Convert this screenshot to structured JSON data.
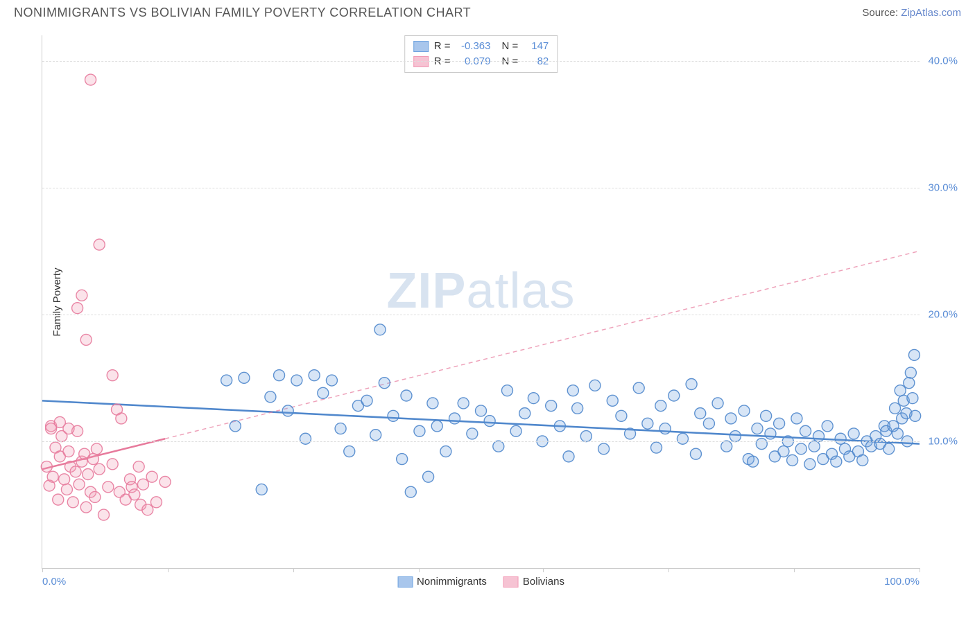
{
  "header": {
    "title": "NONIMMIGRANTS VS BOLIVIAN FAMILY POVERTY CORRELATION CHART",
    "source_label": "Source:",
    "source_name": "ZipAtlas.com"
  },
  "watermark": {
    "part1": "ZIP",
    "part2": "atlas"
  },
  "chart": {
    "type": "scatter",
    "ylabel": "Family Poverty",
    "xlim": [
      0,
      100
    ],
    "ylim": [
      0,
      42
    ],
    "ytick_values": [
      10,
      20,
      30,
      40
    ],
    "ytick_labels": [
      "10.0%",
      "20.0%",
      "30.0%",
      "40.0%"
    ],
    "xtick_positions": [
      0,
      14.3,
      28.6,
      42.9,
      57.1,
      71.4,
      85.7,
      100
    ],
    "x_left_label": "0.0%",
    "x_right_label": "100.0%",
    "background_color": "#ffffff",
    "grid_color": "#dddddd",
    "axis_color": "#cccccc",
    "marker_radius": 8,
    "marker_fill_opacity": 0.28,
    "marker_stroke_opacity": 0.9,
    "series": [
      {
        "name": "Nonimmigrants",
        "color": "#6fa3e0",
        "stroke": "#4f87cc",
        "R": "-0.363",
        "N": "147",
        "trend": {
          "solid": {
            "x1": 0,
            "y1": 13.2,
            "x2": 100,
            "y2": 9.8
          },
          "dashed": null
        },
        "points": [
          [
            21,
            14.8
          ],
          [
            22,
            11.2
          ],
          [
            23,
            15.0
          ],
          [
            25,
            6.2
          ],
          [
            26,
            13.5
          ],
          [
            27,
            15.2
          ],
          [
            28,
            12.4
          ],
          [
            29,
            14.8
          ],
          [
            30,
            10.2
          ],
          [
            31,
            15.2
          ],
          [
            32,
            13.8
          ],
          [
            33,
            14.8
          ],
          [
            34,
            11.0
          ],
          [
            35,
            9.2
          ],
          [
            36,
            12.8
          ],
          [
            37,
            13.2
          ],
          [
            38,
            10.5
          ],
          [
            38.5,
            18.8
          ],
          [
            39,
            14.6
          ],
          [
            40,
            12.0
          ],
          [
            41,
            8.6
          ],
          [
            41.5,
            13.6
          ],
          [
            42,
            6.0
          ],
          [
            43,
            10.8
          ],
          [
            44,
            7.2
          ],
          [
            44.5,
            13.0
          ],
          [
            45,
            11.2
          ],
          [
            46,
            9.2
          ],
          [
            47,
            11.8
          ],
          [
            48,
            13.0
          ],
          [
            49,
            10.6
          ],
          [
            50,
            12.4
          ],
          [
            51,
            11.6
          ],
          [
            52,
            9.6
          ],
          [
            53,
            14.0
          ],
          [
            54,
            10.8
          ],
          [
            55,
            12.2
          ],
          [
            56,
            13.4
          ],
          [
            57,
            10.0
          ],
          [
            58,
            12.8
          ],
          [
            59,
            11.2
          ],
          [
            60,
            8.8
          ],
          [
            60.5,
            14.0
          ],
          [
            61,
            12.6
          ],
          [
            62,
            10.4
          ],
          [
            63,
            14.4
          ],
          [
            64,
            9.4
          ],
          [
            65,
            13.2
          ],
          [
            66,
            12.0
          ],
          [
            67,
            10.6
          ],
          [
            68,
            14.2
          ],
          [
            69,
            11.4
          ],
          [
            70,
            9.5
          ],
          [
            70.5,
            12.8
          ],
          [
            71,
            11.0
          ],
          [
            72,
            13.6
          ],
          [
            73,
            10.2
          ],
          [
            74,
            14.5
          ],
          [
            74.5,
            9.0
          ],
          [
            75,
            12.2
          ],
          [
            76,
            11.4
          ],
          [
            77,
            13.0
          ],
          [
            78,
            9.6
          ],
          [
            78.5,
            11.8
          ],
          [
            79,
            10.4
          ],
          [
            80,
            12.4
          ],
          [
            80.5,
            8.6
          ],
          [
            81,
            8.4
          ],
          [
            81.5,
            11.0
          ],
          [
            82,
            9.8
          ],
          [
            82.5,
            12.0
          ],
          [
            83,
            10.6
          ],
          [
            83.5,
            8.8
          ],
          [
            84,
            11.4
          ],
          [
            84.5,
            9.2
          ],
          [
            85,
            10.0
          ],
          [
            85.5,
            8.5
          ],
          [
            86,
            11.8
          ],
          [
            86.5,
            9.4
          ],
          [
            87,
            10.8
          ],
          [
            87.5,
            8.2
          ],
          [
            88,
            9.6
          ],
          [
            88.5,
            10.4
          ],
          [
            89,
            8.6
          ],
          [
            89.5,
            11.2
          ],
          [
            90,
            9.0
          ],
          [
            90.5,
            8.4
          ],
          [
            91,
            10.2
          ],
          [
            91.5,
            9.4
          ],
          [
            92,
            8.8
          ],
          [
            92.5,
            10.6
          ],
          [
            93,
            9.2
          ],
          [
            93.5,
            8.5
          ],
          [
            94,
            10.0
          ],
          [
            94.5,
            9.6
          ],
          [
            95,
            10.4
          ],
          [
            95.5,
            9.8
          ],
          [
            96,
            11.2
          ],
          [
            96.2,
            10.8
          ],
          [
            96.5,
            9.4
          ],
          [
            97,
            11.2
          ],
          [
            97.2,
            12.6
          ],
          [
            97.5,
            10.6
          ],
          [
            97.8,
            14.0
          ],
          [
            98,
            11.8
          ],
          [
            98.2,
            13.2
          ],
          [
            98.5,
            12.2
          ],
          [
            98.6,
            10.0
          ],
          [
            98.8,
            14.6
          ],
          [
            99,
            15.4
          ],
          [
            99.2,
            13.4
          ],
          [
            99.4,
            16.8
          ],
          [
            99.5,
            12.0
          ]
        ]
      },
      {
        "name": "Bolivians",
        "color": "#f29ab5",
        "stroke": "#e77a9c",
        "R": "0.079",
        "N": "82",
        "trend": {
          "solid": {
            "x1": 0,
            "y1": 7.8,
            "x2": 14,
            "y2": 10.2
          },
          "dashed": {
            "x1": 14,
            "y1": 10.2,
            "x2": 100,
            "y2": 25.0
          }
        },
        "points": [
          [
            0.5,
            8.0
          ],
          [
            0.8,
            6.5
          ],
          [
            1.0,
            11.2
          ],
          [
            1.2,
            7.2
          ],
          [
            1.5,
            9.5
          ],
          [
            1.8,
            5.4
          ],
          [
            2.0,
            8.8
          ],
          [
            2.2,
            10.4
          ],
          [
            2.5,
            7.0
          ],
          [
            2.8,
            6.2
          ],
          [
            3.0,
            9.2
          ],
          [
            3.2,
            8.0
          ],
          [
            3.5,
            5.2
          ],
          [
            3.8,
            7.6
          ],
          [
            4.0,
            10.8
          ],
          [
            4.2,
            6.6
          ],
          [
            4.5,
            8.4
          ],
          [
            4.8,
            9.0
          ],
          [
            5.0,
            4.8
          ],
          [
            5.2,
            7.4
          ],
          [
            5.5,
            6.0
          ],
          [
            5.8,
            8.6
          ],
          [
            5.5,
            38.5
          ],
          [
            6.0,
            5.6
          ],
          [
            6.2,
            9.4
          ],
          [
            6.5,
            7.8
          ],
          [
            7.0,
            4.2
          ],
          [
            4.0,
            20.5
          ],
          [
            4.5,
            21.5
          ],
          [
            5.0,
            18.0
          ],
          [
            6.5,
            25.5
          ],
          [
            7.5,
            6.4
          ],
          [
            8.0,
            8.2
          ],
          [
            8.5,
            12.5
          ],
          [
            8.8,
            6.0
          ],
          [
            9.0,
            11.8
          ],
          [
            9.5,
            5.4
          ],
          [
            10.0,
            7.0
          ],
          [
            10.2,
            6.4
          ],
          [
            10.5,
            5.8
          ],
          [
            11.0,
            8.0
          ],
          [
            11.2,
            5.0
          ],
          [
            11.5,
            6.6
          ],
          [
            12.0,
            4.6
          ],
          [
            12.5,
            7.2
          ],
          [
            8.0,
            15.2
          ],
          [
            13.0,
            5.2
          ],
          [
            14.0,
            6.8
          ],
          [
            1.0,
            11.0
          ],
          [
            2.0,
            11.5
          ],
          [
            3.0,
            11.0
          ]
        ]
      }
    ],
    "legend_bottom": [
      {
        "label": "Nonimmigrants",
        "fill": "#a8c6ec",
        "stroke": "#6fa3e0"
      },
      {
        "label": "Bolivians",
        "fill": "#f6c3d3",
        "stroke": "#f29ab5"
      }
    ]
  }
}
